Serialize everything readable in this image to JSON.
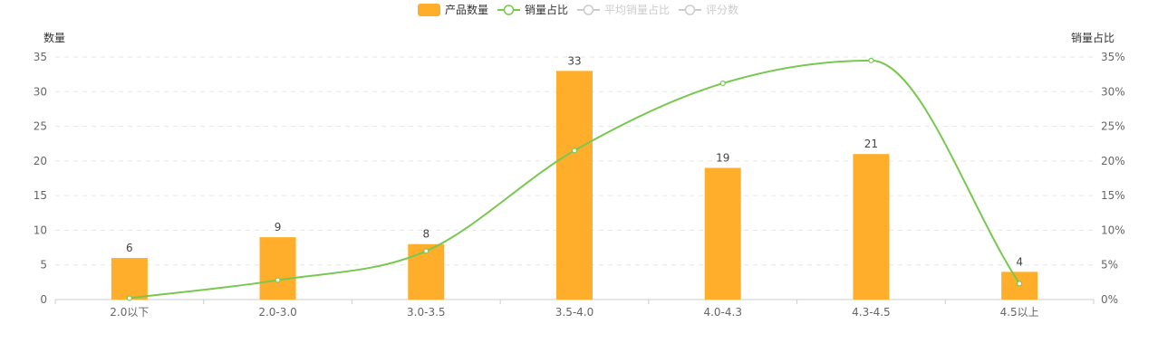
{
  "chart_data": {
    "type": "bar",
    "categories": [
      "2.0以下",
      "2.0-3.0",
      "3.0-3.5",
      "3.5-4.0",
      "4.0-4.3",
      "4.3-4.5",
      "4.5以上"
    ],
    "series": [
      {
        "name": "产品数量",
        "type": "bar",
        "axis": "left",
        "values": [
          6,
          9,
          8,
          33,
          19,
          21,
          4
        ],
        "color": "#ffae2c",
        "labels_shown": true
      },
      {
        "name": "销量占比",
        "type": "line",
        "axis": "right",
        "smooth": true,
        "values": [
          0.2,
          2.8,
          7.0,
          21.5,
          31.2,
          34.5,
          2.3
        ],
        "color": "#78c850"
      }
    ],
    "legend": [
      {
        "name": "产品数量",
        "kind": "bar",
        "active": true
      },
      {
        "name": "销量占比",
        "kind": "line",
        "active": true
      },
      {
        "name": "平均销量占比",
        "kind": "line",
        "active": false
      },
      {
        "name": "评分数",
        "kind": "line",
        "active": false
      }
    ],
    "legend_position": "top-center",
    "y_left": {
      "label": "数量",
      "ylim": [
        0,
        35
      ],
      "ticks": [
        "0",
        "5",
        "10",
        "15",
        "20",
        "25",
        "30",
        "35"
      ]
    },
    "y_right": {
      "label": "销量占比",
      "ylim": [
        0,
        35
      ],
      "ticks": [
        "0%",
        "5%",
        "10%",
        "15%",
        "20%",
        "25%",
        "30%",
        "35%"
      ]
    },
    "grid": "horizontal-dashed",
    "colors": {
      "bar": "#ffae2c",
      "line": "#78c850",
      "inactive": "#cccccc",
      "grid": "#e6e6e6",
      "axis": "#cccccc"
    }
  }
}
